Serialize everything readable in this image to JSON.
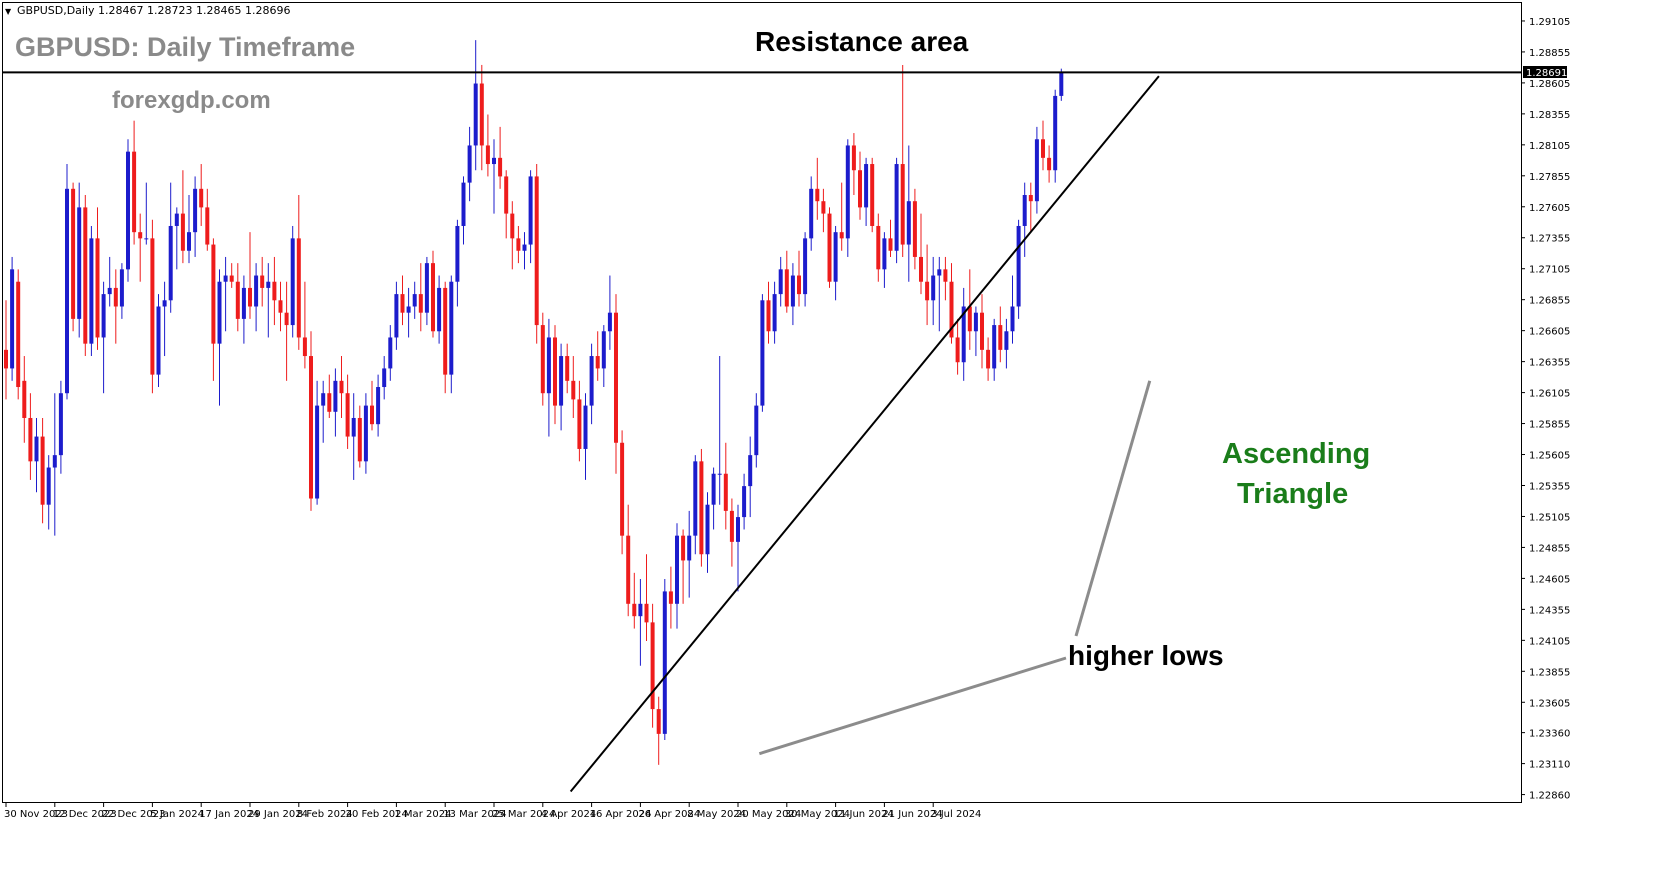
{
  "header": {
    "symbol_line": "GBPUSD,Daily  1.28467 1.28723 1.28465 1.28696",
    "title": "GBPUSD: Daily Timeframe",
    "watermark": "forexgdp.com"
  },
  "annotations": {
    "resistance_label": "Resistance area",
    "pattern_label_line1": "Ascending",
    "pattern_label_line2": "Triangle",
    "lows_label": "higher lows",
    "current_price_tag": "1.28691"
  },
  "colors": {
    "bull": "#1c1ccc",
    "bear": "#ee1c1c",
    "pattern_text": "#1a7d1a",
    "title_gray": "#8a8a8a",
    "pointer_gray": "#8c8c8c",
    "line": "#000000"
  },
  "chart_data": {
    "type": "candlestick",
    "symbol": "GBPUSD",
    "timeframe": "Daily",
    "ohlc_readout": {
      "open": 1.28467,
      "high": 1.28723,
      "low": 1.28465,
      "close": 1.28696
    },
    "ylim": [
      1.228,
      1.2925
    ],
    "y_ticks": [
      "1.29105",
      "1.28855",
      "1.28605",
      "1.28355",
      "1.28105",
      "1.27855",
      "1.27605",
      "1.27355",
      "1.27105",
      "1.26855",
      "1.26605",
      "1.26355",
      "1.26105",
      "1.25855",
      "1.25605",
      "1.25355",
      "1.25105",
      "1.24855",
      "1.24605",
      "1.24355",
      "1.24105",
      "1.23855",
      "1.23605",
      "1.23360",
      "1.23110",
      "1.22860"
    ],
    "x_ticks": [
      {
        "label": "30 Nov 2023",
        "bar": 0
      },
      {
        "label": "12 Dec 2023",
        "bar": 8
      },
      {
        "label": "22 Dec 2023",
        "bar": 16
      },
      {
        "label": "5 Jan 2024",
        "bar": 24
      },
      {
        "label": "17 Jan 2024",
        "bar": 32
      },
      {
        "label": "29 Jan 2024",
        "bar": 40
      },
      {
        "label": "8 Feb 2024",
        "bar": 48
      },
      {
        "label": "20 Feb 2024",
        "bar": 56
      },
      {
        "label": "1 Mar 2024",
        "bar": 64
      },
      {
        "label": "13 Mar 2024",
        "bar": 72
      },
      {
        "label": "25 Mar 2024",
        "bar": 80
      },
      {
        "label": "4 Apr 2024",
        "bar": 88
      },
      {
        "label": "16 Apr 2024",
        "bar": 96
      },
      {
        "label": "26 Apr 2024",
        "bar": 104
      },
      {
        "label": "8 May 2024",
        "bar": 112
      },
      {
        "label": "20 May 2024",
        "bar": 120
      },
      {
        "label": "30 May 2024",
        "bar": 128
      },
      {
        "label": "11 Jun 2024",
        "bar": 136
      },
      {
        "label": "21 Jun 2024",
        "bar": 144
      },
      {
        "label": "3 Jul 2024",
        "bar": 152
      }
    ],
    "resistance_level": 1.2869,
    "support_trendline": [
      {
        "bar": 96.5,
        "price": 1.2312
      },
      {
        "bar": 189,
        "price": 1.2866
      }
    ],
    "candles": [
      [
        1.2645,
        1.2685,
        1.2605,
        1.263
      ],
      [
        1.263,
        1.272,
        1.262,
        1.271
      ],
      [
        1.27,
        1.271,
        1.2605,
        1.2615
      ],
      [
        1.262,
        1.264,
        1.257,
        1.259
      ],
      [
        1.259,
        1.261,
        1.254,
        1.2555
      ],
      [
        1.2555,
        1.259,
        1.253,
        1.2575
      ],
      [
        1.2575,
        1.259,
        1.2505,
        1.252
      ],
      [
        1.252,
        1.256,
        1.25,
        1.255
      ],
      [
        1.255,
        1.261,
        1.2495,
        1.256
      ],
      [
        1.256,
        1.262,
        1.2545,
        1.261
      ],
      [
        1.261,
        1.2795,
        1.2605,
        1.2775
      ],
      [
        1.2775,
        1.278,
        1.266,
        1.267
      ],
      [
        1.267,
        1.278,
        1.2655,
        1.276
      ],
      [
        1.276,
        1.277,
        1.264,
        1.265
      ],
      [
        1.265,
        1.2745,
        1.264,
        1.2735
      ],
      [
        1.2735,
        1.276,
        1.2645,
        1.2655
      ],
      [
        1.2655,
        1.27,
        1.261,
        1.269
      ],
      [
        1.269,
        1.272,
        1.268,
        1.2695
      ],
      [
        1.2695,
        1.271,
        1.265,
        1.268
      ],
      [
        1.268,
        1.2715,
        1.267,
        1.271
      ],
      [
        1.271,
        1.2815,
        1.27,
        1.2805
      ],
      [
        1.2805,
        1.283,
        1.273,
        1.274
      ],
      [
        1.274,
        1.2755,
        1.27,
        1.2735
      ],
      [
        1.2735,
        1.278,
        1.273,
        1.2735
      ],
      [
        1.2735,
        1.275,
        1.261,
        1.2625
      ],
      [
        1.2625,
        1.269,
        1.2615,
        1.268
      ],
      [
        1.268,
        1.27,
        1.264,
        1.2685
      ],
      [
        1.2685,
        1.278,
        1.2675,
        1.2745
      ],
      [
        1.2745,
        1.276,
        1.271,
        1.2755
      ],
      [
        1.2755,
        1.279,
        1.2715,
        1.2725
      ],
      [
        1.2725,
        1.277,
        1.2715,
        1.274
      ],
      [
        1.274,
        1.2785,
        1.272,
        1.2775
      ],
      [
        1.2775,
        1.2795,
        1.2745,
        1.276
      ],
      [
        1.276,
        1.2775,
        1.2725,
        1.273
      ],
      [
        1.273,
        1.2735,
        1.262,
        1.265
      ],
      [
        1.265,
        1.271,
        1.26,
        1.27
      ],
      [
        1.27,
        1.272,
        1.266,
        1.2705
      ],
      [
        1.2705,
        1.2715,
        1.2695,
        1.27
      ],
      [
        1.27,
        1.2715,
        1.266,
        1.267
      ],
      [
        1.267,
        1.2705,
        1.265,
        1.2695
      ],
      [
        1.2695,
        1.274,
        1.267,
        1.268
      ],
      [
        1.268,
        1.2715,
        1.266,
        1.2705
      ],
      [
        1.2705,
        1.272,
        1.268,
        1.2695
      ],
      [
        1.2695,
        1.2715,
        1.2655,
        1.27
      ],
      [
        1.27,
        1.272,
        1.2665,
        1.2685
      ],
      [
        1.2685,
        1.27,
        1.266,
        1.2675
      ],
      [
        1.2675,
        1.27,
        1.262,
        1.2665
      ],
      [
        1.2665,
        1.2745,
        1.2655,
        1.2735
      ],
      [
        1.2735,
        1.277,
        1.2645,
        1.2655
      ],
      [
        1.2655,
        1.27,
        1.263,
        1.264
      ],
      [
        1.264,
        1.266,
        1.2515,
        1.2525
      ],
      [
        1.2525,
        1.262,
        1.252,
        1.26
      ],
      [
        1.26,
        1.262,
        1.257,
        1.261
      ],
      [
        1.261,
        1.2625,
        1.259,
        1.2595
      ],
      [
        1.2595,
        1.263,
        1.2575,
        1.262
      ],
      [
        1.262,
        1.264,
        1.259,
        1.261
      ],
      [
        1.261,
        1.2625,
        1.2565,
        1.2575
      ],
      [
        1.2575,
        1.261,
        1.254,
        1.259
      ],
      [
        1.259,
        1.26,
        1.255,
        1.2555
      ],
      [
        1.2555,
        1.261,
        1.2545,
        1.26
      ],
      [
        1.26,
        1.262,
        1.258,
        1.2585
      ],
      [
        1.2585,
        1.2625,
        1.2575,
        1.2615
      ],
      [
        1.2615,
        1.264,
        1.2605,
        1.263
      ],
      [
        1.263,
        1.2665,
        1.262,
        1.2655
      ],
      [
        1.2655,
        1.27,
        1.2645,
        1.269
      ],
      [
        1.269,
        1.2705,
        1.2665,
        1.2675
      ],
      [
        1.2675,
        1.2695,
        1.2655,
        1.268
      ],
      [
        1.268,
        1.27,
        1.267,
        1.269
      ],
      [
        1.269,
        1.2715,
        1.266,
        1.2675
      ],
      [
        1.2675,
        1.272,
        1.2665,
        1.2715
      ],
      [
        1.2715,
        1.2725,
        1.2655,
        1.266
      ],
      [
        1.266,
        1.2705,
        1.265,
        1.2695
      ],
      [
        1.2695,
        1.27,
        1.261,
        1.2625
      ],
      [
        1.2625,
        1.2705,
        1.261,
        1.27
      ],
      [
        1.27,
        1.275,
        1.268,
        1.2745
      ],
      [
        1.2745,
        1.2785,
        1.273,
        1.278
      ],
      [
        1.278,
        1.2825,
        1.2765,
        1.281
      ],
      [
        1.281,
        1.2895,
        1.279,
        1.286
      ],
      [
        1.286,
        1.2875,
        1.279,
        1.281
      ],
      [
        1.281,
        1.2835,
        1.2785,
        1.2795
      ],
      [
        1.2795,
        1.2815,
        1.2755,
        1.28
      ],
      [
        1.28,
        1.2825,
        1.2775,
        1.2785
      ],
      [
        1.2785,
        1.279,
        1.2735,
        1.2755
      ],
      [
        1.2755,
        1.2765,
        1.271,
        1.2735
      ],
      [
        1.2735,
        1.2745,
        1.2715,
        1.2725
      ],
      [
        1.2725,
        1.274,
        1.271,
        1.273
      ],
      [
        1.273,
        1.279,
        1.2715,
        1.2785
      ],
      [
        1.2785,
        1.2795,
        1.265,
        1.2665
      ],
      [
        1.2665,
        1.2675,
        1.26,
        1.261
      ],
      [
        1.261,
        1.267,
        1.2575,
        1.2655
      ],
      [
        1.2655,
        1.2665,
        1.2585,
        1.26
      ],
      [
        1.26,
        1.265,
        1.258,
        1.264
      ],
      [
        1.264,
        1.265,
        1.261,
        1.262
      ],
      [
        1.262,
        1.264,
        1.259,
        1.2605
      ],
      [
        1.2605,
        1.262,
        1.2555,
        1.2565
      ],
      [
        1.2565,
        1.261,
        1.254,
        1.26
      ],
      [
        1.26,
        1.265,
        1.2585,
        1.264
      ],
      [
        1.264,
        1.266,
        1.262,
        1.263
      ],
      [
        1.263,
        1.2665,
        1.2615,
        1.266
      ],
      [
        1.266,
        1.2705,
        1.2645,
        1.2675
      ],
      [
        1.2675,
        1.269,
        1.2545,
        1.257
      ],
      [
        1.257,
        1.258,
        1.248,
        1.2495
      ],
      [
        1.2495,
        1.252,
        1.243,
        1.244
      ],
      [
        1.244,
        1.2465,
        1.242,
        1.243
      ],
      [
        1.243,
        1.246,
        1.239,
        1.244
      ],
      [
        1.244,
        1.248,
        1.241,
        1.2425
      ],
      [
        1.2425,
        1.244,
        1.234,
        1.2355
      ],
      [
        1.2355,
        1.2365,
        1.231,
        1.2335
      ],
      [
        1.2335,
        1.246,
        1.233,
        1.245
      ],
      [
        1.245,
        1.247,
        1.242,
        1.244
      ],
      [
        1.244,
        1.2505,
        1.242,
        1.2495
      ],
      [
        1.2495,
        1.25,
        1.244,
        1.2475
      ],
      [
        1.2475,
        1.2515,
        1.2445,
        1.2495
      ],
      [
        1.2495,
        1.256,
        1.248,
        1.2555
      ],
      [
        1.2555,
        1.2565,
        1.247,
        1.248
      ],
      [
        1.248,
        1.253,
        1.2465,
        1.252
      ],
      [
        1.252,
        1.255,
        1.25,
        1.2545
      ],
      [
        1.2545,
        1.264,
        1.252,
        1.2545
      ],
      [
        1.2545,
        1.257,
        1.25,
        1.2515
      ],
      [
        1.2515,
        1.2525,
        1.247,
        1.249
      ],
      [
        1.249,
        1.252,
        1.245,
        1.251
      ],
      [
        1.251,
        1.2545,
        1.25,
        1.2535
      ],
      [
        1.2535,
        1.2575,
        1.251,
        1.256
      ],
      [
        1.256,
        1.261,
        1.255,
        1.26
      ],
      [
        1.26,
        1.269,
        1.2595,
        1.2685
      ],
      [
        1.2685,
        1.27,
        1.265,
        1.266
      ],
      [
        1.266,
        1.27,
        1.265,
        1.269
      ],
      [
        1.269,
        1.272,
        1.268,
        1.271
      ],
      [
        1.271,
        1.2725,
        1.2675,
        1.268
      ],
      [
        1.268,
        1.2715,
        1.2665,
        1.2705
      ],
      [
        1.2705,
        1.2725,
        1.268,
        1.269
      ],
      [
        1.269,
        1.274,
        1.268,
        1.2735
      ],
      [
        1.2735,
        1.2785,
        1.2725,
        1.2775
      ],
      [
        1.2775,
        1.28,
        1.275,
        1.2765
      ],
      [
        1.2765,
        1.2775,
        1.274,
        1.2755
      ],
      [
        1.2755,
        1.276,
        1.2695,
        1.27
      ],
      [
        1.27,
        1.2745,
        1.2685,
        1.274
      ],
      [
        1.274,
        1.278,
        1.2725,
        1.2735
      ],
      [
        1.2735,
        1.2815,
        1.272,
        1.281
      ],
      [
        1.281,
        1.282,
        1.277,
        1.279
      ],
      [
        1.279,
        1.2805,
        1.275,
        1.276
      ],
      [
        1.276,
        1.28,
        1.2745,
        1.2795
      ],
      [
        1.2795,
        1.28,
        1.274,
        1.2745
      ],
      [
        1.2745,
        1.2755,
        1.27,
        1.271
      ],
      [
        1.271,
        1.274,
        1.2695,
        1.2735
      ],
      [
        1.2735,
        1.275,
        1.272,
        1.2725
      ],
      [
        1.2725,
        1.28,
        1.2715,
        1.2795
      ],
      [
        1.2795,
        1.2875,
        1.272,
        1.273
      ],
      [
        1.273,
        1.281,
        1.27,
        1.2765
      ],
      [
        1.2765,
        1.2775,
        1.271,
        1.272
      ],
      [
        1.272,
        1.2755,
        1.269,
        1.27
      ],
      [
        1.27,
        1.273,
        1.2665,
        1.2685
      ],
      [
        1.2685,
        1.272,
        1.2665,
        1.2705
      ],
      [
        1.2705,
        1.272,
        1.266,
        1.271
      ],
      [
        1.271,
        1.272,
        1.2685,
        1.27
      ],
      [
        1.27,
        1.2715,
        1.265,
        1.2655
      ],
      [
        1.2655,
        1.267,
        1.2625,
        1.2635
      ],
      [
        1.2635,
        1.2695,
        1.262,
        1.268
      ],
      [
        1.268,
        1.271,
        1.2645,
        1.266
      ],
      [
        1.266,
        1.268,
        1.264,
        1.2675
      ],
      [
        1.2675,
        1.269,
        1.263,
        1.2645
      ],
      [
        1.2645,
        1.2655,
        1.262,
        1.263
      ],
      [
        1.263,
        1.267,
        1.262,
        1.2665
      ],
      [
        1.2665,
        1.268,
        1.2635,
        1.2645
      ],
      [
        1.2645,
        1.267,
        1.263,
        1.266
      ],
      [
        1.266,
        1.2705,
        1.265,
        1.268
      ],
      [
        1.268,
        1.275,
        1.267,
        1.2745
      ],
      [
        1.2745,
        1.278,
        1.272,
        1.277
      ],
      [
        1.277,
        1.278,
        1.274,
        1.2765
      ],
      [
        1.2765,
        1.2825,
        1.2755,
        1.2815
      ],
      [
        1.2815,
        1.283,
        1.279,
        1.28
      ],
      [
        1.28,
        1.281,
        1.278,
        1.279
      ],
      [
        1.279,
        1.2855,
        1.278,
        1.285
      ],
      [
        1.285,
        1.2872,
        1.2846,
        1.2869
      ]
    ]
  }
}
